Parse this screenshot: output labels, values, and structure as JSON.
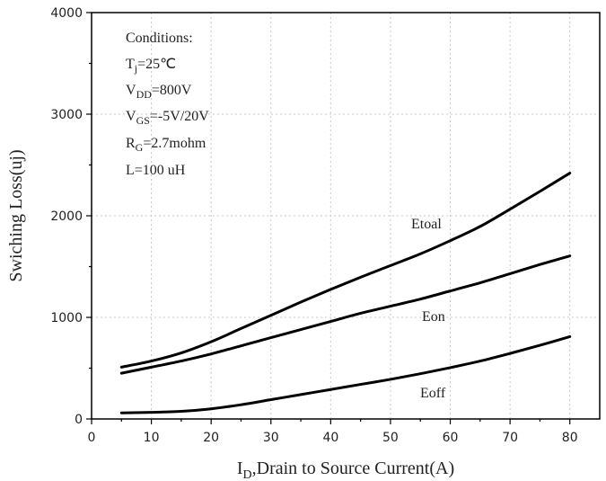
{
  "chart_data": {
    "type": "line",
    "xlabel_main": "I",
    "xlabel_sub": "D",
    "xlabel_rest": ",Drain to Source Current(A)",
    "ylabel": "Swiching Loss(uj)",
    "xlim": [
      0,
      85
    ],
    "ylim": [
      0,
      4000
    ],
    "xticks": [
      0,
      10,
      20,
      30,
      40,
      50,
      60,
      70,
      80
    ],
    "yticks": [
      0,
      1000,
      2000,
      3000,
      4000
    ],
    "grid": true,
    "x": [
      5,
      10,
      15,
      20,
      25,
      30,
      35,
      40,
      45,
      50,
      55,
      60,
      65,
      70,
      75,
      80
    ],
    "series": [
      {
        "name": "Etoal",
        "values": [
          510,
          570,
          650,
          760,
          890,
          1020,
          1150,
          1275,
          1395,
          1510,
          1625,
          1755,
          1895,
          2065,
          2240,
          2420
        ]
      },
      {
        "name": "Eon",
        "values": [
          450,
          510,
          570,
          640,
          720,
          800,
          880,
          960,
          1040,
          1110,
          1180,
          1260,
          1340,
          1430,
          1520,
          1605
        ]
      },
      {
        "name": "Eoff",
        "values": [
          60,
          65,
          75,
          100,
          140,
          190,
          240,
          290,
          340,
          390,
          445,
          505,
          570,
          645,
          725,
          810
        ]
      }
    ],
    "conditions": {
      "title": "Conditions:",
      "lines": [
        {
          "main": "T",
          "sub": "j",
          "rest": "=25℃"
        },
        {
          "main": "V",
          "sub": "DD",
          "rest": "=800V"
        },
        {
          "main": "V",
          "sub": "GS",
          "rest": "=-5V/20V"
        },
        {
          "main": "R",
          "sub": "G",
          "rest": "=2.7mohm"
        },
        {
          "main": "L=100 uH",
          "sub": "",
          "rest": ""
        }
      ]
    }
  }
}
